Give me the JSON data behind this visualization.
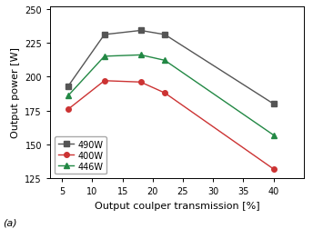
{
  "series": [
    {
      "label": "490W",
      "x": [
        6,
        12,
        18,
        22,
        40
      ],
      "y": [
        193,
        231,
        234,
        231,
        180
      ],
      "color": "#555555",
      "marker": "s",
      "linestyle": "-"
    },
    {
      "label": "400W",
      "x": [
        6,
        12,
        18,
        22,
        40
      ],
      "y": [
        176,
        197,
        196,
        188,
        132
      ],
      "color": "#cc3333",
      "marker": "o",
      "linestyle": "-"
    },
    {
      "label": "446W",
      "x": [
        6,
        12,
        18,
        22,
        40
      ],
      "y": [
        186,
        215,
        216,
        212,
        157
      ],
      "color": "#228844",
      "marker": "^",
      "linestyle": "-"
    }
  ],
  "xlabel": "Output coulper transmission [%]",
  "ylabel": "Output power [W]",
  "xlim": [
    3,
    45
  ],
  "ylim": [
    125,
    252
  ],
  "xticks": [
    5,
    10,
    15,
    20,
    25,
    30,
    35,
    40
  ],
  "yticks": [
    125,
    150,
    175,
    200,
    225,
    250
  ],
  "annotation": "(a)",
  "legend_loc": "lower left",
  "background_color": "#ffffff",
  "tick_fontsize": 7,
  "label_fontsize": 8,
  "legend_fontsize": 7
}
